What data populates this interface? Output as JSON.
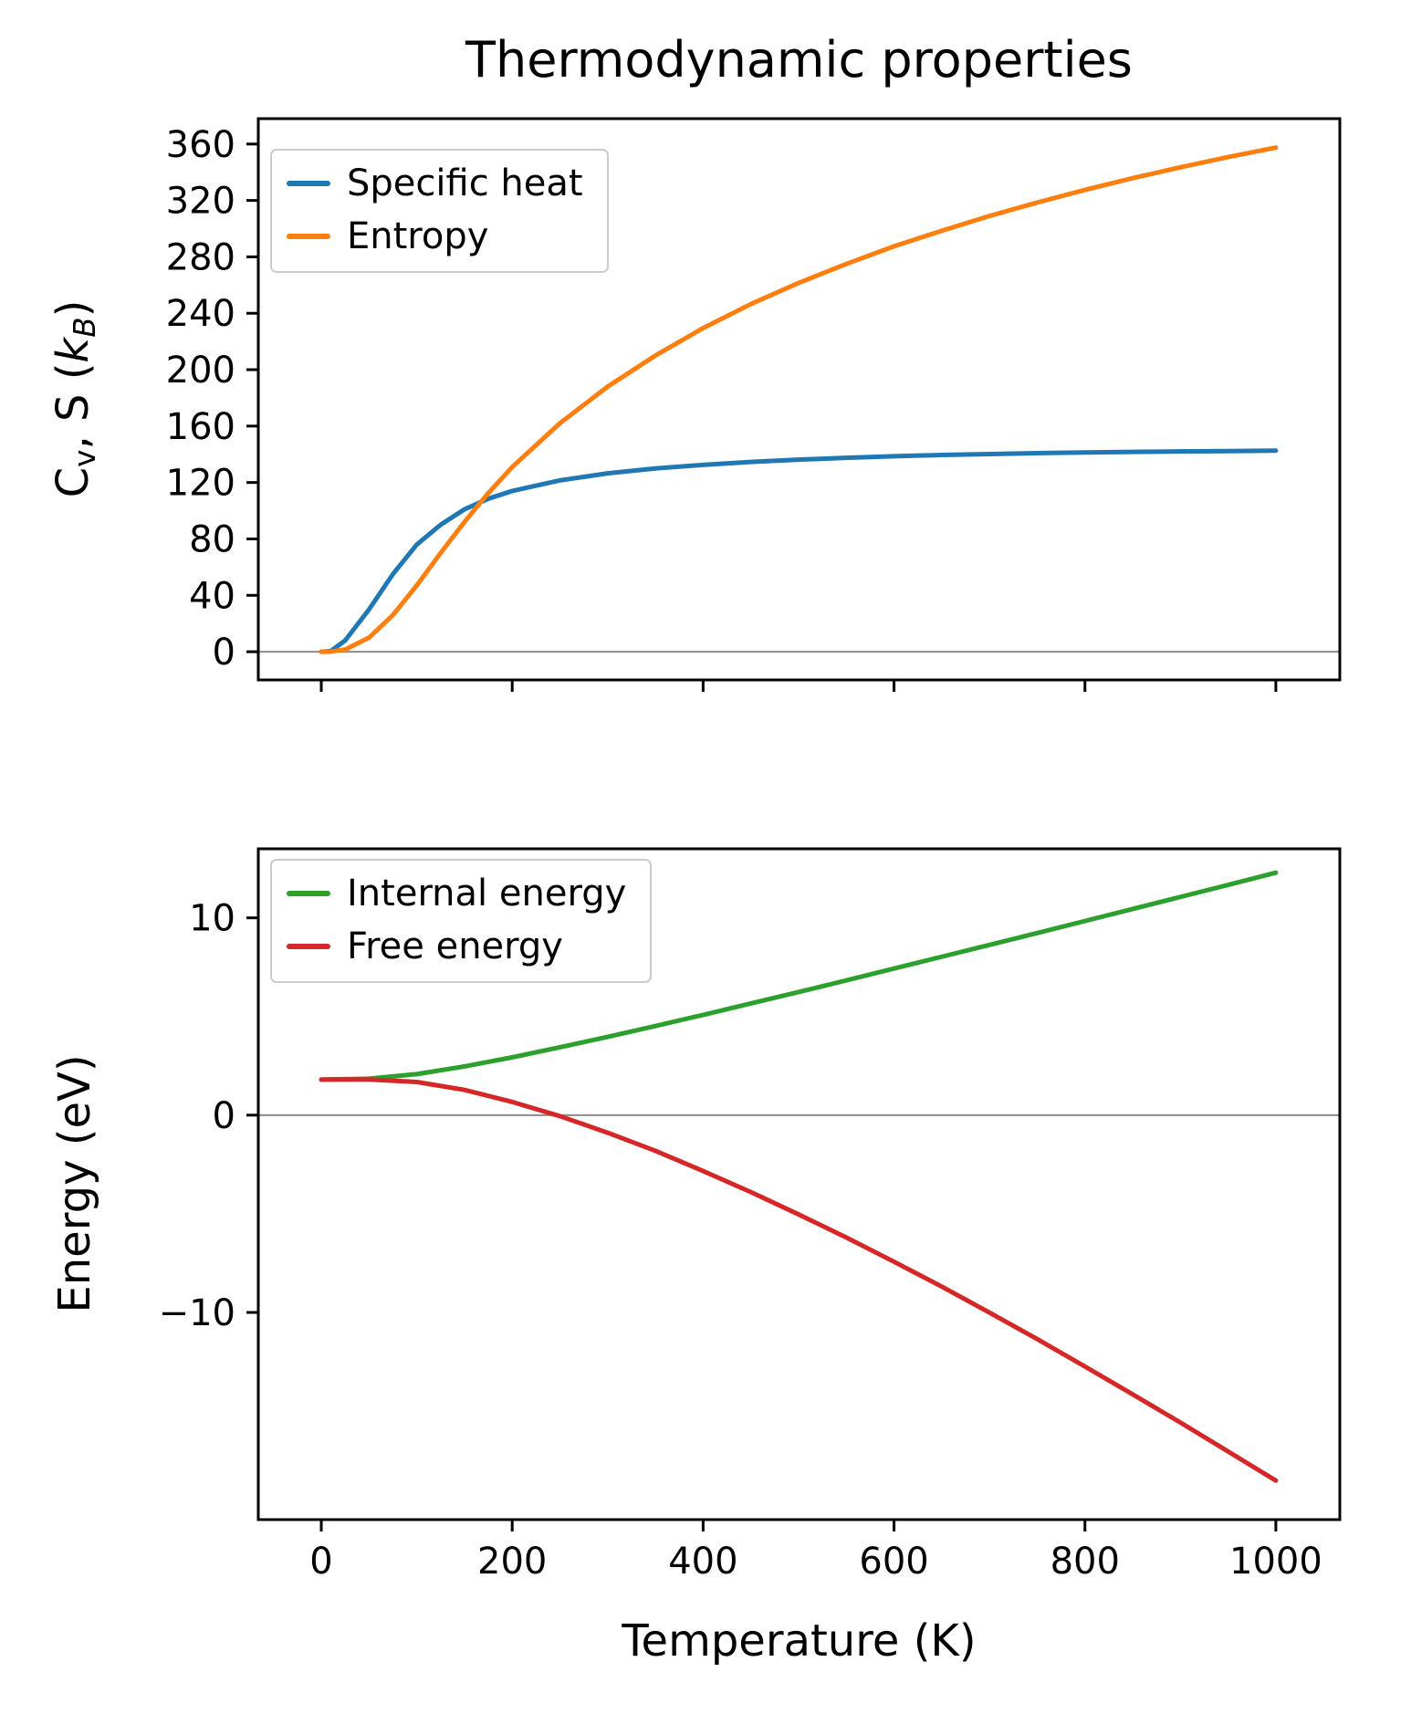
{
  "title": "Thermodynamic properties",
  "chart_data": [
    {
      "type": "line",
      "panel": "top",
      "ylabel_plain": "Cv, S (kB)",
      "ylabel_parts": [
        {
          "t": "C"
        },
        {
          "t": "v",
          "sub": true
        },
        {
          "t": ", S ("
        },
        {
          "t": "k",
          "italic": true
        },
        {
          "t": "B",
          "sub": true,
          "italic": true
        },
        {
          "t": ")"
        }
      ],
      "xlim": [
        -66,
        1067
      ],
      "ylim": [
        -20,
        378
      ],
      "yticks": [
        0,
        40,
        80,
        120,
        160,
        200,
        240,
        280,
        320,
        360
      ],
      "xticks": [
        0,
        200,
        400,
        600,
        800,
        1000
      ],
      "show_x_tick_labels": false,
      "grid": false,
      "zero_line": {
        "y": 0,
        "color": "#8c8c8c"
      },
      "legend_position": "upper-left",
      "series": [
        {
          "name": "Specific heat",
          "color": "#1f77b4",
          "x": [
            0,
            10,
            25,
            50,
            75,
            100,
            125,
            150,
            175,
            200,
            250,
            300,
            350,
            400,
            450,
            500,
            550,
            600,
            650,
            700,
            750,
            800,
            850,
            900,
            950,
            1000
          ],
          "y": [
            0,
            0.5,
            8,
            30,
            55,
            76,
            90,
            101,
            108.5,
            114,
            121.5,
            126.5,
            130,
            132.5,
            134.6,
            136.2,
            137.5,
            138.6,
            139.5,
            140.2,
            140.8,
            141.3,
            141.7,
            142.0,
            142.3,
            142.6
          ]
        },
        {
          "name": "Entropy",
          "color": "#ff7f0e",
          "x": [
            0,
            10,
            25,
            50,
            75,
            100,
            125,
            150,
            175,
            200,
            250,
            300,
            350,
            400,
            450,
            500,
            550,
            600,
            650,
            700,
            750,
            800,
            850,
            900,
            950,
            1000
          ],
          "y": [
            0,
            0.1,
            1.5,
            10,
            26,
            47,
            70,
            92,
            112.5,
            131,
            162,
            188,
            210,
            229.5,
            246.5,
            261.5,
            275,
            287.5,
            298.5,
            309,
            318.5,
            327.5,
            335.8,
            343.5,
            350.8,
            357.5
          ]
        }
      ]
    },
    {
      "type": "line",
      "panel": "bottom",
      "ylabel": "Energy (eV)",
      "xlabel": "Temperature (K)",
      "xlim": [
        -66,
        1067
      ],
      "ylim": [
        -20.5,
        13.5
      ],
      "yticks": [
        -10,
        0,
        10
      ],
      "xticks": [
        0,
        200,
        400,
        600,
        800,
        1000
      ],
      "show_x_tick_labels": true,
      "grid": false,
      "zero_line": {
        "y": 0,
        "color": "#8c8c8c"
      },
      "legend_position": "upper-left",
      "series": [
        {
          "name": "Internal energy",
          "color": "#2ca02c",
          "x": [
            0,
            50,
            100,
            150,
            200,
            250,
            300,
            350,
            400,
            450,
            500,
            550,
            600,
            650,
            700,
            750,
            800,
            850,
            900,
            950,
            1000
          ],
          "y": [
            1.8,
            1.85,
            2.08,
            2.47,
            2.93,
            3.44,
            3.97,
            4.52,
            5.08,
            5.66,
            6.24,
            6.83,
            7.43,
            8.03,
            8.63,
            9.23,
            9.84,
            10.45,
            11.06,
            11.67,
            12.29
          ]
        },
        {
          "name": "Free energy",
          "color": "#d62728",
          "x": [
            0,
            50,
            100,
            150,
            200,
            250,
            300,
            350,
            400,
            450,
            500,
            550,
            600,
            650,
            700,
            750,
            800,
            850,
            900,
            950,
            1000
          ],
          "y": [
            1.8,
            1.81,
            1.68,
            1.28,
            0.67,
            -0.05,
            -0.89,
            -1.81,
            -2.83,
            -3.9,
            -5.03,
            -6.2,
            -7.43,
            -8.69,
            -10.01,
            -11.35,
            -12.74,
            -14.15,
            -15.58,
            -17.05,
            -18.52
          ]
        }
      ]
    }
  ]
}
